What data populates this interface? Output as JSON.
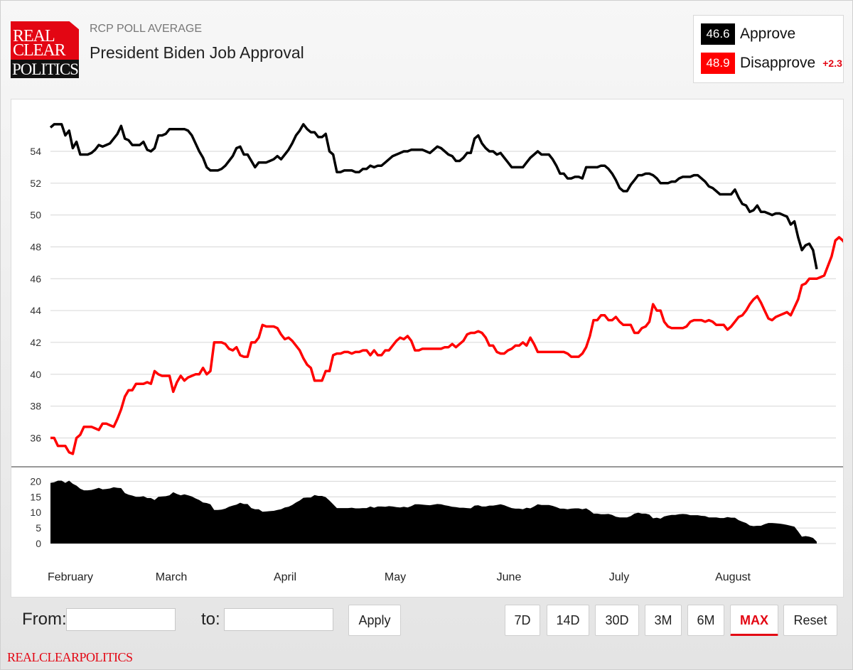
{
  "header": {
    "logo": {
      "line1": "REAL",
      "line2": "CLEAR",
      "line3": "POLITICS"
    },
    "supertitle": "RCP POLL AVERAGE",
    "title": "President Biden Job Approval"
  },
  "legend": {
    "approve": {
      "value": "46.6",
      "label": "Approve",
      "color": "#000000"
    },
    "disapprove": {
      "value": "48.9",
      "label": "Disapprove",
      "spread": "+2.3",
      "color": "#ff0000"
    }
  },
  "chart_data": {
    "type": "line",
    "x_labels": [
      "February",
      "March",
      "April",
      "May",
      "June",
      "July",
      "August"
    ],
    "ylim": [
      34.5,
      56.5
    ],
    "y_ticks": [
      36,
      38,
      40,
      42,
      44,
      46,
      48,
      50,
      52,
      54
    ],
    "grid": true,
    "legend_placement": "top-right",
    "series": [
      {
        "name": "Approve",
        "color": "#000000",
        "values": [
          55.5,
          55.7,
          55.7,
          55.7,
          55.0,
          55.3,
          54.2,
          54.6,
          53.8,
          53.8,
          53.8,
          53.9,
          54.1,
          54.4,
          54.3,
          54.4,
          54.5,
          54.8,
          55.1,
          55.6,
          54.8,
          54.7,
          54.4,
          54.4,
          54.4,
          54.6,
          54.1,
          54.0,
          54.2,
          55.0,
          55.0,
          55.1,
          55.4,
          55.4,
          55.4,
          55.4,
          55.4,
          55.3,
          55.0,
          54.5,
          54.0,
          53.6,
          53.0,
          52.8,
          52.8,
          52.8,
          52.9,
          53.1,
          53.4,
          53.7,
          54.2,
          54.3,
          53.8,
          53.8,
          53.4,
          53.0,
          53.3,
          53.3,
          53.3,
          53.4,
          53.5,
          53.7,
          53.5,
          53.8,
          54.1,
          54.5,
          55.0,
          55.3,
          55.7,
          55.4,
          55.2,
          55.2,
          54.9,
          54.9,
          55.1,
          54.0,
          53.8,
          52.7,
          52.7,
          52.8,
          52.8,
          52.8,
          52.7,
          52.7,
          52.9,
          52.9,
          53.1,
          53.0,
          53.1,
          53.1,
          53.3,
          53.5,
          53.7,
          53.8,
          53.9,
          54.0,
          54.0,
          54.1,
          54.1,
          54.1,
          54.1,
          54.0,
          53.9,
          54.1,
          54.3,
          54.2,
          54.0,
          53.8,
          53.7,
          53.4,
          53.4,
          53.6,
          53.9,
          53.9,
          54.8,
          55.0,
          54.5,
          54.2,
          54.0,
          54.0,
          53.8,
          53.9,
          53.6,
          53.3,
          53.0,
          53.0,
          53.0,
          53.0,
          53.3,
          53.6,
          53.8,
          54.0,
          53.8,
          53.8,
          53.8,
          53.5,
          53.1,
          52.6,
          52.6,
          52.3,
          52.3,
          52.4,
          52.4,
          52.3,
          53.0,
          53.0,
          53.0,
          53.0,
          53.1,
          53.1,
          52.9,
          52.6,
          52.2,
          51.7,
          51.5,
          51.5,
          51.9,
          52.2,
          52.5,
          52.5,
          52.6,
          52.6,
          52.5,
          52.3,
          52.0,
          52.0,
          52.0,
          52.1,
          52.1,
          52.3,
          52.4,
          52.4,
          52.4,
          52.5,
          52.5,
          52.3,
          52.1,
          51.8,
          51.7,
          51.5,
          51.3,
          51.3,
          51.3,
          51.3,
          51.6,
          51.1,
          50.7,
          50.6,
          50.2,
          50.3,
          50.6,
          50.2,
          50.2,
          50.1,
          50.0,
          50.1,
          50.1,
          50.0,
          49.9,
          49.4,
          49.6,
          48.6,
          47.8,
          48.1,
          48.2,
          47.8,
          46.6
        ]
      },
      {
        "name": "Disapprove",
        "color": "#ff0000",
        "values": [
          36.0,
          36.0,
          35.5,
          35.5,
          35.5,
          35.1,
          35.0,
          36.0,
          36.2,
          36.7,
          36.7,
          36.7,
          36.6,
          36.5,
          36.9,
          36.9,
          36.8,
          36.7,
          37.2,
          37.8,
          38.6,
          39.0,
          39.0,
          39.4,
          39.4,
          39.4,
          39.5,
          39.4,
          40.2,
          40.0,
          39.9,
          39.9,
          39.9,
          38.9,
          39.5,
          39.9,
          39.6,
          39.8,
          39.9,
          40.0,
          40.0,
          40.4,
          40.0,
          40.2,
          42.0,
          42.0,
          42.0,
          41.9,
          41.6,
          41.5,
          41.7,
          41.2,
          41.1,
          41.1,
          42.0,
          42.0,
          42.3,
          43.1,
          43.0,
          43.0,
          43.0,
          42.9,
          42.5,
          42.2,
          42.3,
          42.1,
          41.8,
          41.5,
          41.0,
          40.6,
          40.4,
          39.6,
          39.6,
          39.6,
          40.2,
          40.2,
          41.2,
          41.3,
          41.3,
          41.4,
          41.4,
          41.3,
          41.4,
          41.4,
          41.5,
          41.5,
          41.2,
          41.5,
          41.2,
          41.2,
          41.5,
          41.5,
          41.8,
          42.1,
          42.3,
          42.2,
          42.4,
          42.1,
          41.5,
          41.5,
          41.6,
          41.6,
          41.6,
          41.6,
          41.6,
          41.6,
          41.7,
          41.7,
          41.9,
          41.7,
          41.9,
          42.1,
          42.5,
          42.6,
          42.6,
          42.7,
          42.6,
          42.3,
          41.8,
          41.8,
          41.4,
          41.3,
          41.3,
          41.5,
          41.6,
          41.8,
          41.8,
          42.0,
          41.8,
          42.3,
          41.9,
          41.4,
          41.4,
          41.4,
          41.4,
          41.4,
          41.4,
          41.4,
          41.4,
          41.3,
          41.1,
          41.1,
          41.1,
          41.3,
          41.7,
          42.4,
          43.4,
          43.4,
          43.7,
          43.7,
          43.4,
          43.4,
          43.6,
          43.3,
          43.1,
          43.1,
          43.1,
          42.6,
          42.6,
          42.9,
          43.0,
          43.3,
          44.4,
          44.0,
          44.0,
          43.3,
          43.0,
          42.9,
          42.9,
          42.9,
          42.9,
          43.0,
          43.3,
          43.4,
          43.4,
          43.4,
          43.3,
          43.4,
          43.3,
          43.1,
          43.1,
          43.1,
          42.8,
          43.0,
          43.3,
          43.6,
          43.7,
          44.0,
          44.4,
          44.7,
          44.9,
          44.5,
          44.0,
          43.5,
          43.4,
          43.6,
          43.7,
          43.8,
          43.9,
          43.7,
          44.2,
          44.7,
          45.6,
          45.7,
          46.0,
          46.0,
          46.0,
          46.1,
          46.2,
          46.8,
          47.4,
          48.4,
          48.6,
          48.4,
          48.1,
          47.8,
          48.9
        ]
      }
    ]
  },
  "spread_chart": {
    "type": "area",
    "y_ticks": [
      0,
      5,
      10,
      15,
      20
    ],
    "ylim": [
      0,
      21
    ]
  },
  "controls": {
    "from_label": "From:",
    "to_label": "to:",
    "apply_label": "Apply",
    "ranges": [
      "7D",
      "14D",
      "30D",
      "3M",
      "6M",
      "MAX"
    ],
    "active_range": "MAX",
    "reset_label": "Reset"
  },
  "footer": {
    "brand": "REALCLEARPOLITICS"
  }
}
